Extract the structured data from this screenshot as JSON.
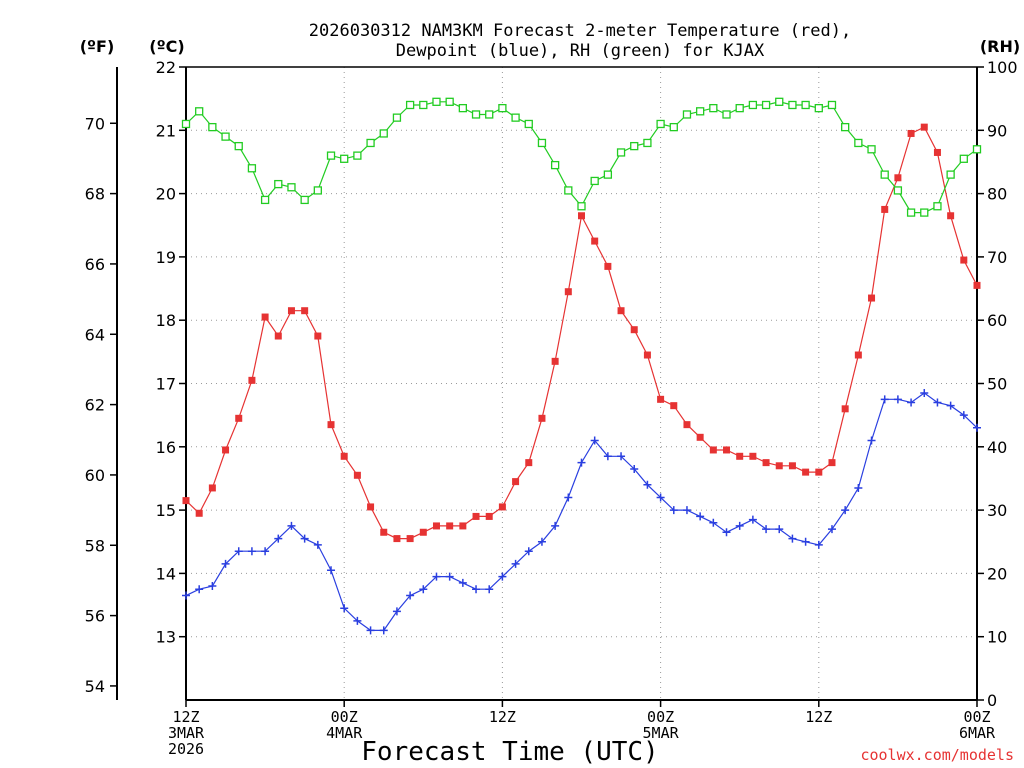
{
  "chart_data": {
    "type": "line",
    "title": "2026030312 NAM3KM Forecast 2-meter Temperature (red),",
    "title_line2": "Dewpoint (blue), RH (green) for KJAX",
    "xlabel": "Forecast Time (UTC)",
    "unit_labels": {
      "f": "(ºF)",
      "c": "(ºC)",
      "rh": "(RH)"
    },
    "x_ticks": [
      {
        "hour": 0,
        "lines": [
          "12Z",
          "3MAR",
          "2026"
        ]
      },
      {
        "hour": 12,
        "lines": [
          "00Z",
          "4MAR"
        ]
      },
      {
        "hour": 24,
        "lines": [
          "12Z"
        ]
      },
      {
        "hour": 36,
        "lines": [
          "00Z",
          "5MAR"
        ]
      },
      {
        "hour": 48,
        "lines": [
          "12Z"
        ]
      },
      {
        "hour": 60,
        "lines": [
          "00Z",
          "6MAR"
        ]
      }
    ],
    "xlim": [
      0,
      60
    ],
    "celsius_axis": {
      "ylim": [
        12.0,
        22.0
      ],
      "ticks": [
        13,
        14,
        15,
        16,
        17,
        18,
        19,
        20,
        21,
        22
      ]
    },
    "fahrenheit_axis": {
      "ylim": [
        53.6,
        71.6
      ],
      "ticks": [
        54,
        56,
        58,
        60,
        62,
        64,
        66,
        68,
        70
      ]
    },
    "rh_axis": {
      "ylim": [
        0,
        100
      ],
      "ticks": [
        0,
        10,
        20,
        30,
        40,
        50,
        60,
        70,
        80,
        90,
        100
      ]
    },
    "grid": true,
    "series": [
      {
        "name": "Temperature",
        "units": "°C",
        "axis": "celsius",
        "color": "#e63333",
        "marker": "filled-square",
        "x": [
          0,
          1,
          2,
          3,
          4,
          5,
          6,
          7,
          8,
          9,
          10,
          11,
          12,
          13,
          14,
          15,
          16,
          17,
          18,
          19,
          20,
          21,
          22,
          23,
          24,
          25,
          26,
          27,
          28,
          29,
          30,
          31,
          32,
          33,
          34,
          35,
          36,
          37,
          38,
          39,
          40,
          41,
          42,
          43,
          44,
          45,
          46,
          47,
          48,
          49,
          50,
          51,
          52,
          53,
          54,
          55,
          56,
          57,
          58,
          59,
          60
        ],
        "values": [
          15.15,
          14.95,
          15.35,
          15.95,
          16.45,
          17.05,
          18.05,
          17.75,
          18.15,
          18.15,
          17.75,
          16.35,
          15.85,
          15.55,
          15.05,
          14.65,
          14.55,
          14.55,
          14.65,
          14.75,
          14.75,
          14.75,
          14.9,
          14.9,
          15.05,
          15.45,
          15.75,
          16.45,
          17.35,
          18.45,
          19.65,
          19.25,
          18.85,
          18.15,
          17.85,
          17.45,
          16.75,
          16.65,
          16.35,
          16.15,
          15.95,
          15.95,
          15.85,
          15.85,
          15.75,
          15.7,
          15.7,
          15.6,
          15.6,
          15.75,
          16.6,
          17.45,
          18.35,
          19.75,
          20.25,
          20.95,
          21.05,
          20.65,
          19.65,
          18.95,
          18.55
        ]
      },
      {
        "name": "Dewpoint",
        "units": "°C",
        "axis": "celsius",
        "color": "#2a3fe0",
        "marker": "plus",
        "x": [
          0,
          1,
          2,
          3,
          4,
          5,
          6,
          7,
          8,
          9,
          10,
          11,
          12,
          13,
          14,
          15,
          16,
          17,
          18,
          19,
          20,
          21,
          22,
          23,
          24,
          25,
          26,
          27,
          28,
          29,
          30,
          31,
          32,
          33,
          34,
          35,
          36,
          37,
          38,
          39,
          40,
          41,
          42,
          43,
          44,
          45,
          46,
          47,
          48,
          49,
          50,
          51,
          52,
          53,
          54,
          55,
          56,
          57,
          58,
          59,
          60
        ],
        "values": [
          13.65,
          13.75,
          13.8,
          14.15,
          14.35,
          14.35,
          14.35,
          14.55,
          14.75,
          14.55,
          14.45,
          14.05,
          13.45,
          13.25,
          13.1,
          13.1,
          13.4,
          13.65,
          13.75,
          13.95,
          13.95,
          13.85,
          13.75,
          13.75,
          13.95,
          14.15,
          14.35,
          14.5,
          14.75,
          15.2,
          15.75,
          16.1,
          15.85,
          15.85,
          15.65,
          15.4,
          15.2,
          15.0,
          15.0,
          14.9,
          14.8,
          14.65,
          14.75,
          14.85,
          14.7,
          14.7,
          14.55,
          14.5,
          14.45,
          14.7,
          15.0,
          15.35,
          16.1,
          16.75,
          16.75,
          16.7,
          16.85,
          16.7,
          16.65,
          16.5,
          16.3
        ]
      },
      {
        "name": "Relative Humidity",
        "units": "%",
        "axis": "rh",
        "color": "#22cc22",
        "marker": "open-square",
        "x": [
          0,
          1,
          2,
          3,
          4,
          5,
          6,
          7,
          8,
          9,
          10,
          11,
          12,
          13,
          14,
          15,
          16,
          17,
          18,
          19,
          20,
          21,
          22,
          23,
          24,
          25,
          26,
          27,
          28,
          29,
          30,
          31,
          32,
          33,
          34,
          35,
          36,
          37,
          38,
          39,
          40,
          41,
          42,
          43,
          44,
          45,
          46,
          47,
          48,
          49,
          50,
          51,
          52,
          53,
          54,
          55,
          56,
          57,
          58,
          59,
          60
        ],
        "values": [
          91,
          93,
          90.5,
          89,
          87.5,
          84,
          79,
          81.5,
          81,
          79,
          80.5,
          86,
          85.5,
          86,
          88,
          89.5,
          92,
          94,
          94,
          94.5,
          94.5,
          93.5,
          92.5,
          92.5,
          93.5,
          92,
          91,
          88,
          84.5,
          80.5,
          78,
          82,
          83,
          86.5,
          87.5,
          88,
          91,
          90.5,
          92.5,
          93,
          93.5,
          92.5,
          93.5,
          94,
          94,
          94.5,
          94,
          94,
          93.5,
          94,
          90.5,
          88,
          87,
          83,
          80.5,
          77,
          77,
          78,
          83,
          85.5,
          87
        ]
      }
    ]
  },
  "watermark": "coolwx.com/models"
}
